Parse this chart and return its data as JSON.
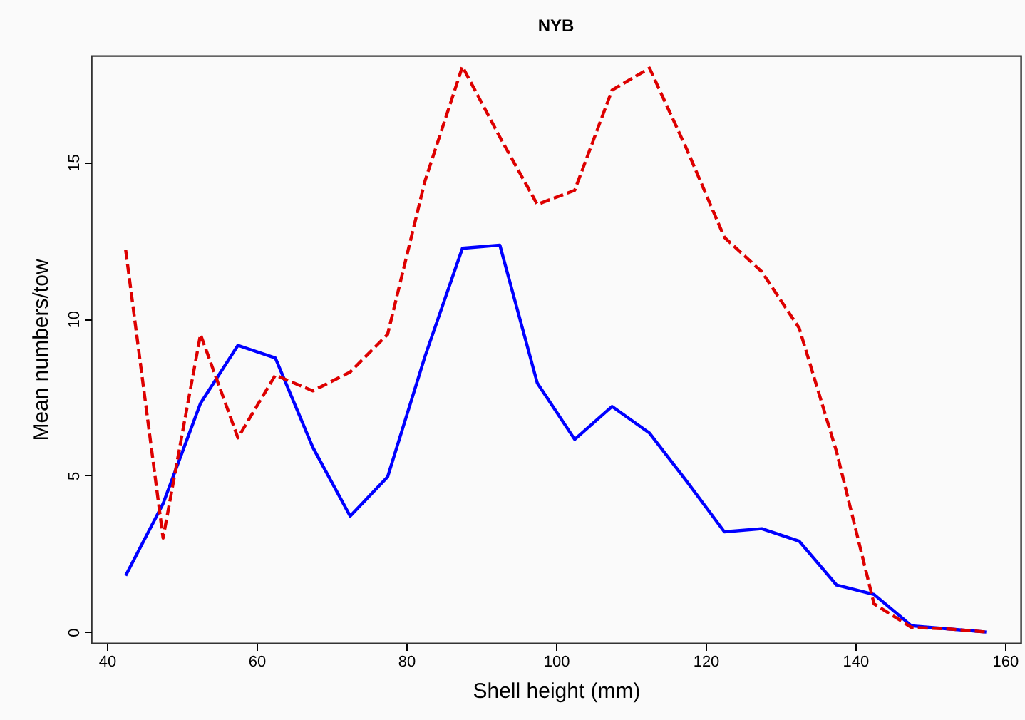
{
  "chart_data": {
    "type": "line",
    "title": "NYB",
    "xlabel": "Shell height (mm)",
    "ylabel": "Mean numbers/tow",
    "x": [
      42.5,
      47.5,
      52.5,
      57.5,
      62.5,
      67.5,
      72.5,
      77.5,
      82.5,
      87.5,
      92.5,
      97.5,
      102.5,
      107.5,
      112.5,
      117.5,
      122.5,
      127.5,
      132.5,
      137.5,
      142.5,
      147.5,
      152.5,
      157.5
    ],
    "series": [
      {
        "color": "#0000ff",
        "line_style": "solid",
        "values": [
          1.8,
          4.1,
          7.3,
          9.15,
          8.75,
          5.9,
          3.7,
          4.95,
          8.8,
          12.25,
          12.35,
          7.95,
          6.15,
          7.2,
          6.35,
          4.8,
          3.2,
          3.3,
          2.9,
          1.5,
          1.2,
          0.2,
          0.1,
          0.0
        ]
      },
      {
        "color": "#dd0000",
        "line_style": "dashed",
        "values": [
          12.2,
          3.0,
          9.5,
          6.2,
          8.2,
          7.7,
          8.3,
          9.5,
          14.4,
          18.05,
          15.8,
          13.65,
          14.1,
          17.3,
          18.0,
          15.4,
          12.6,
          11.5,
          9.7,
          5.75,
          0.9,
          0.15,
          0.1,
          0.0
        ]
      }
    ],
    "xlim": [
      37.9,
      162.1
    ],
    "ylim": [
      -0.35,
      18.4
    ],
    "xticks": [
      40,
      60,
      80,
      100,
      120,
      140,
      160
    ],
    "yticks": [
      0,
      5,
      10,
      15
    ],
    "grid": false
  }
}
